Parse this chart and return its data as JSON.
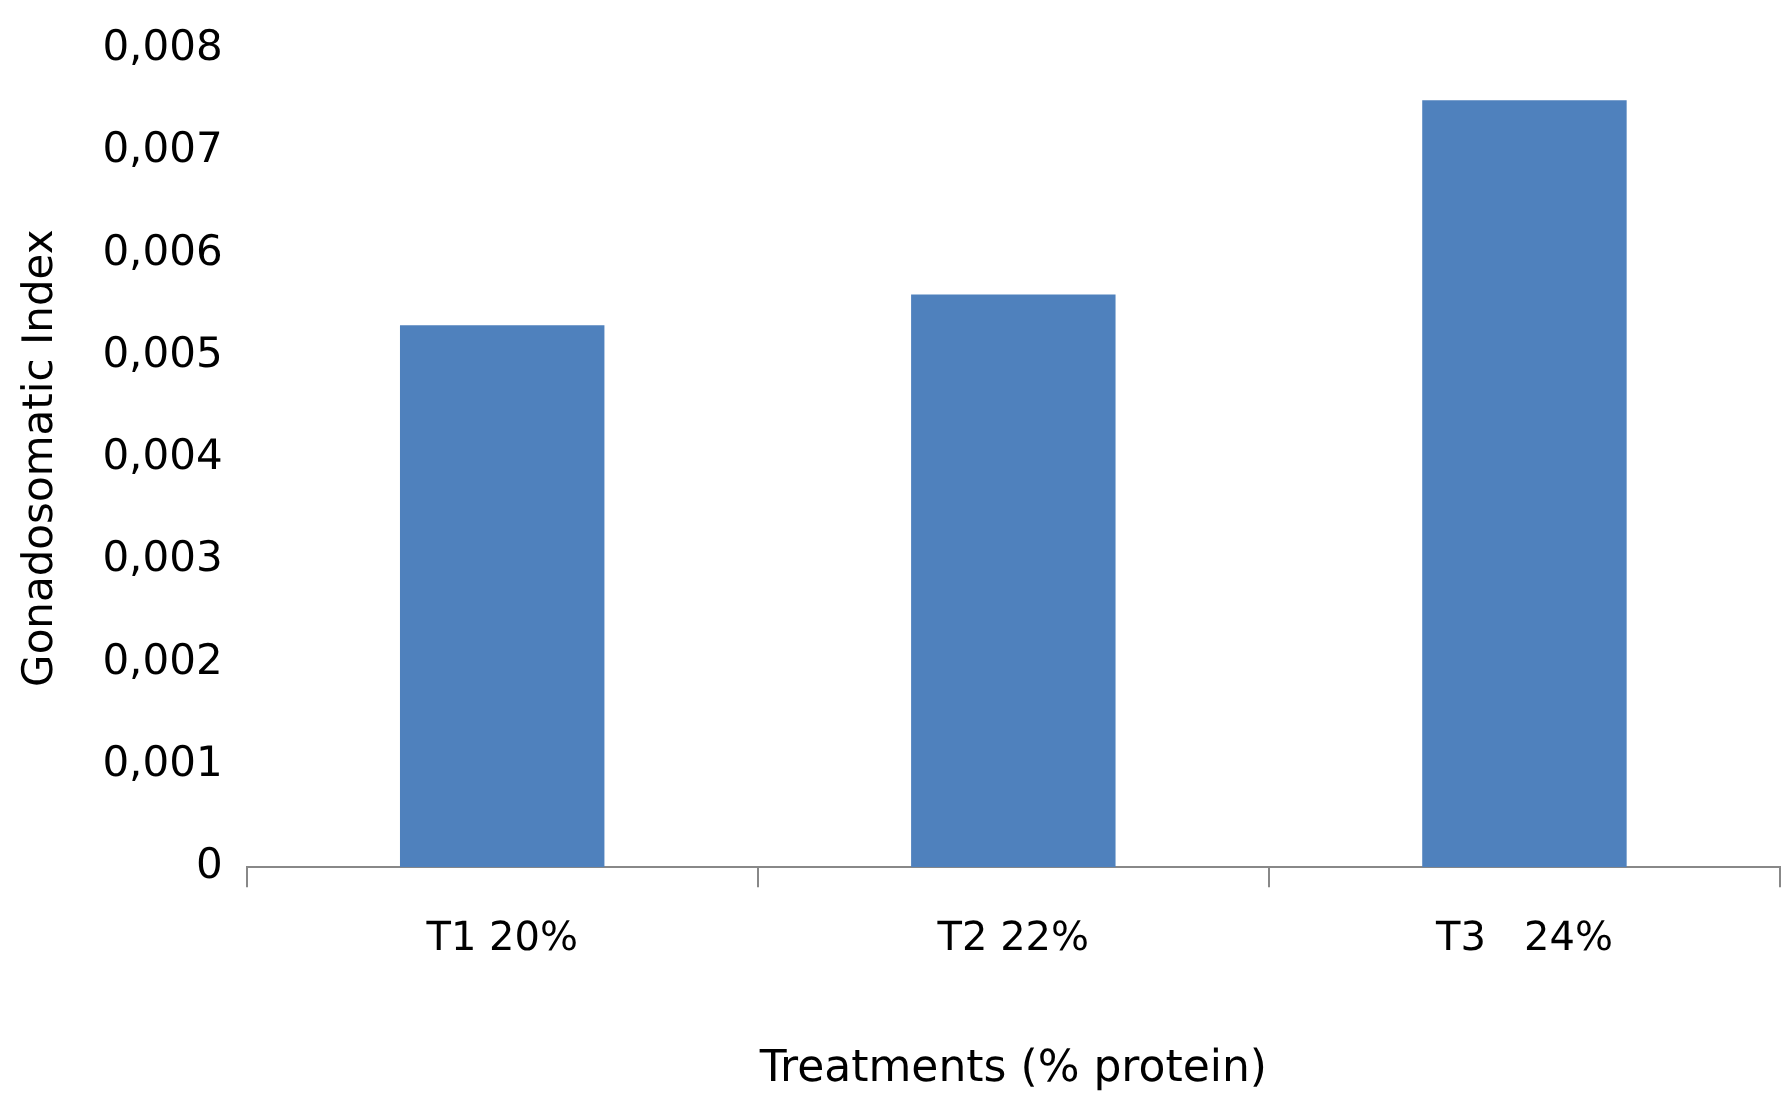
{
  "chart_data": {
    "type": "bar",
    "xlabel": "Treatments (% protein)",
    "ylabel": "Gonadosomatic Index",
    "categories": [
      "T1 20%",
      "T2 22%",
      "T3   24%"
    ],
    "values": [
      0.0053,
      0.0056,
      0.0075
    ],
    "color": "#4f81bd",
    "ylim": [
      0,
      0.008
    ],
    "yticks": [
      0,
      {
        "value": 0.001,
        "label": "0,001"
      },
      {
        "value": 0.002,
        "label": "0,002"
      },
      {
        "value": 0.003,
        "label": "0,003"
      },
      {
        "value": 0.004,
        "label": "0,004"
      },
      {
        "value": 0.005,
        "label": "0,005"
      },
      {
        "value": 0.006,
        "label": "0,006"
      },
      {
        "value": 0.007,
        "label": "0,007"
      },
      {
        "value": 0.008,
        "label": "0,008"
      }
    ],
    "grid": false,
    "legend": false
  }
}
